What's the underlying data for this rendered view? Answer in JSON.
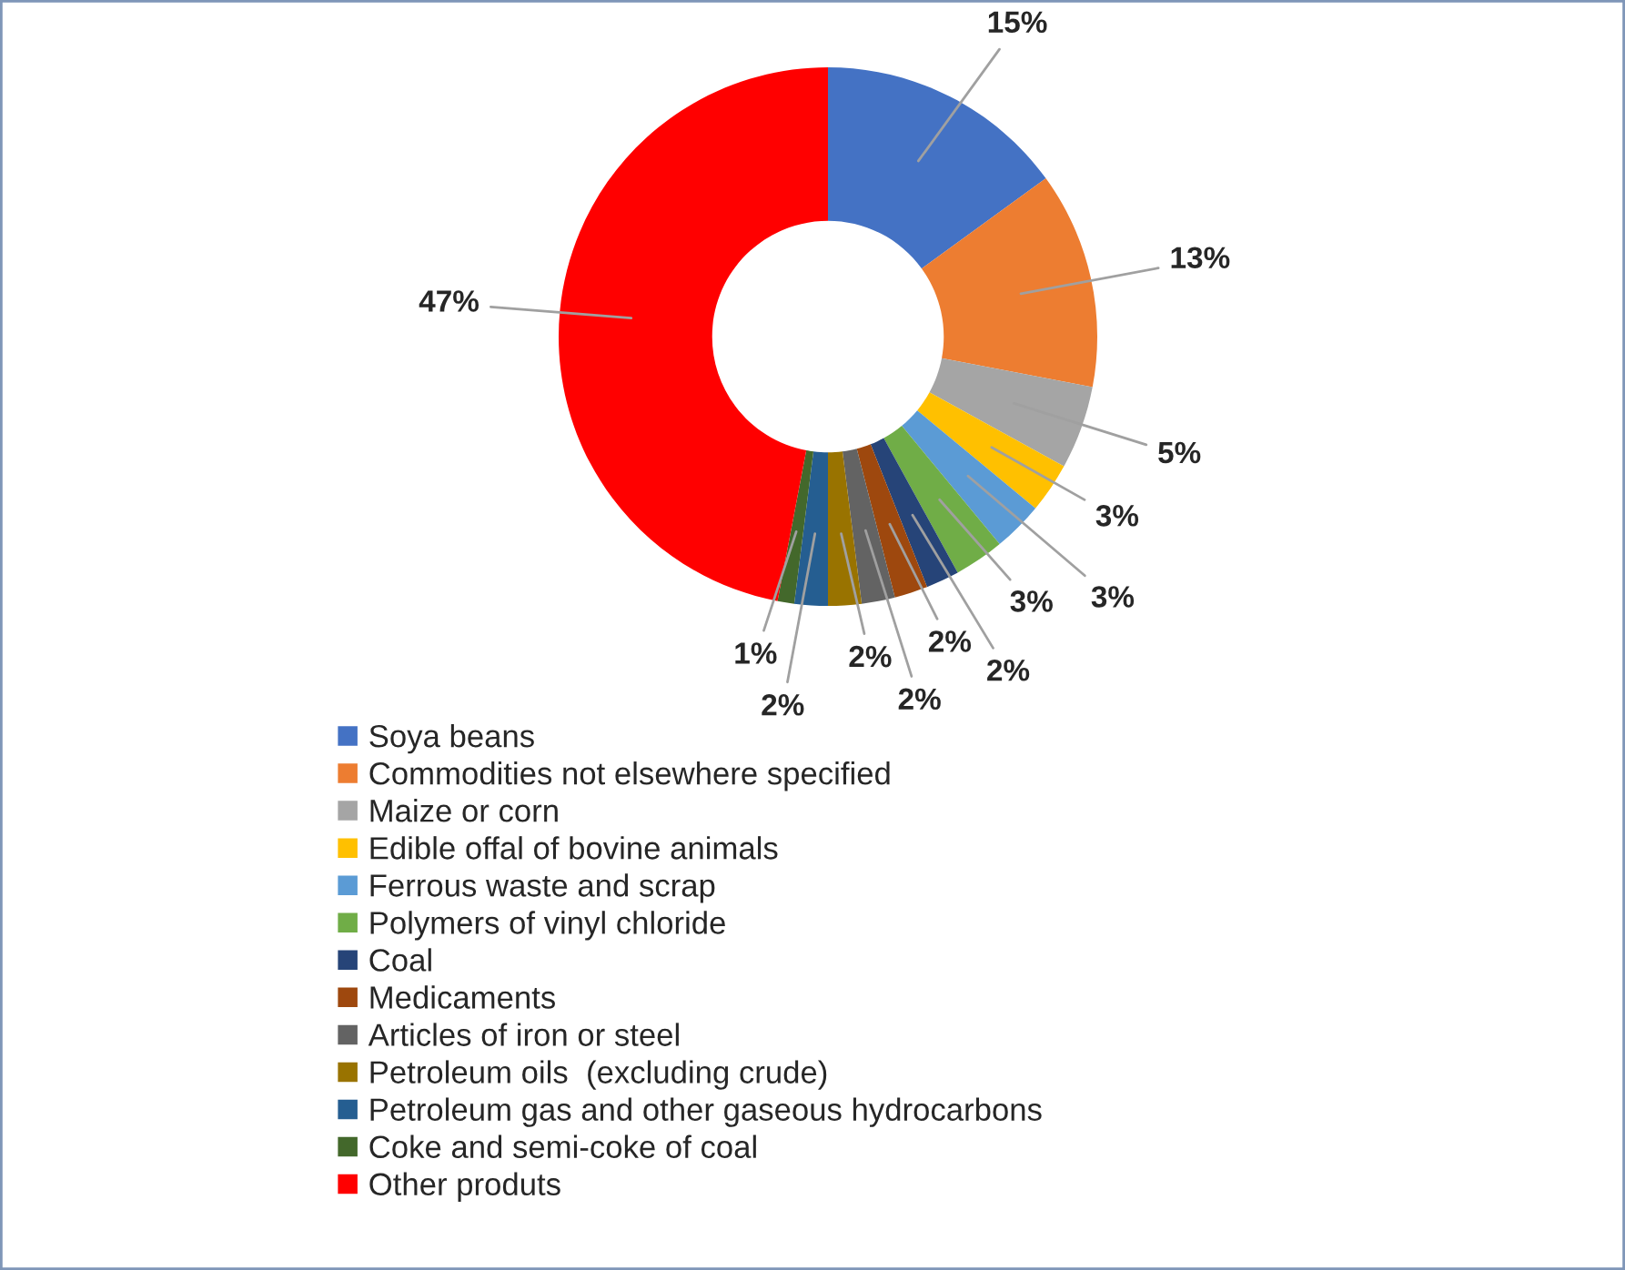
{
  "chart_data": {
    "type": "donut",
    "categories": [
      "Soya beans",
      "Commodities not elsewhere specified",
      "Maize or corn",
      "Edible offal of bovine animals",
      "Ferrous waste and scrap",
      "Polymers of vinyl chloride",
      "Coal",
      "Medicaments",
      "Articles of iron or steel",
      "Petroleum oils  (excluding crude)",
      "Petroleum gas and other gaseous hydrocarbons",
      "Coke and semi-coke of coal",
      "Other produts"
    ],
    "values": [
      15,
      13,
      5,
      3,
      3,
      3,
      2,
      2,
      2,
      2,
      2,
      1,
      47
    ],
    "colors": [
      "#4472c4",
      "#ed7d31",
      "#a5a5a5",
      "#ffc000",
      "#5b9bd5",
      "#70ad47",
      "#264478",
      "#9e480e",
      "#636363",
      "#997300",
      "#255e91",
      "#43682b",
      "#ff0000"
    ],
    "value_labels": [
      "15%",
      "13%",
      "5%",
      "3%",
      "3%",
      "3%",
      "2%",
      "2%",
      "2%",
      "2%",
      "2%",
      "1%",
      "47%"
    ],
    "legend": "bottom"
  }
}
